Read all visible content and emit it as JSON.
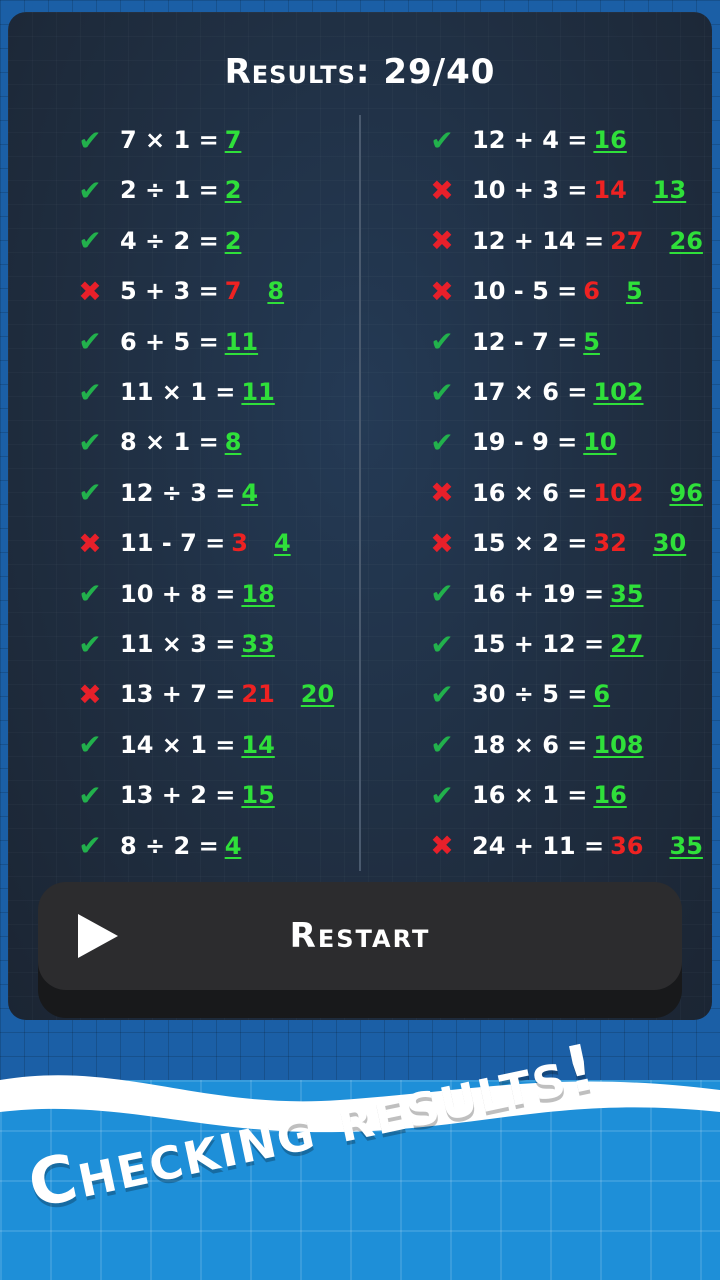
{
  "title": "Results: 29/40",
  "colors": {
    "correct": "#22b14c",
    "wrong": "#e8202a",
    "answer_green": "#2fe03a",
    "panel": "#1f2d3f",
    "button": "#2c2c2e",
    "banner_blue": "#1e8fd8"
  },
  "left": [
    {
      "status": "check-icon",
      "expr": "7 × 1 =",
      "answer": "7"
    },
    {
      "status": "check-icon",
      "expr": "2 ÷ 1 =",
      "answer": "2"
    },
    {
      "status": "check-icon",
      "expr": "4 ÷ 2 =",
      "answer": "2"
    },
    {
      "status": "cross-icon",
      "expr": "5 + 3 =",
      "answer": "7",
      "correct": "8"
    },
    {
      "status": "check-icon",
      "expr": "6 + 5 =",
      "answer": "11"
    },
    {
      "status": "check-icon",
      "expr": "11 × 1 =",
      "answer": "11"
    },
    {
      "status": "check-icon",
      "expr": "8 × 1 =",
      "answer": "8"
    },
    {
      "status": "check-icon",
      "expr": "12 ÷ 3 =",
      "answer": "4"
    },
    {
      "status": "cross-icon",
      "expr": "11 - 7 =",
      "answer": "3",
      "correct": "4"
    },
    {
      "status": "check-icon",
      "expr": "10 + 8 =",
      "answer": "18"
    },
    {
      "status": "check-icon",
      "expr": "11 × 3 =",
      "answer": "33"
    },
    {
      "status": "cross-icon",
      "expr": "13 + 7 =",
      "answer": "21",
      "correct": "20"
    },
    {
      "status": "check-icon",
      "expr": "14 × 1 =",
      "answer": "14"
    },
    {
      "status": "check-icon",
      "expr": "13 + 2 =",
      "answer": "15"
    },
    {
      "status": "check-icon",
      "expr": "8 ÷ 2 =",
      "answer": "4"
    }
  ],
  "right": [
    {
      "status": "check-icon",
      "expr": "12 + 4 =",
      "answer": "16"
    },
    {
      "status": "cross-icon",
      "expr": "10 + 3 =",
      "answer": "14",
      "correct": "13"
    },
    {
      "status": "cross-icon",
      "expr": "12 + 14 =",
      "answer": "27",
      "correct": "26"
    },
    {
      "status": "cross-icon",
      "expr": "10 - 5 =",
      "answer": "6",
      "correct": "5"
    },
    {
      "status": "check-icon",
      "expr": "12 - 7 =",
      "answer": "5"
    },
    {
      "status": "check-icon",
      "expr": "17 × 6 =",
      "answer": "102"
    },
    {
      "status": "check-icon",
      "expr": "19 - 9 =",
      "answer": "10"
    },
    {
      "status": "cross-icon",
      "expr": "16 × 6 =",
      "answer": "102",
      "correct": "96"
    },
    {
      "status": "cross-icon",
      "expr": "15 × 2 =",
      "answer": "32",
      "correct": "30"
    },
    {
      "status": "check-icon",
      "expr": "16 + 19 =",
      "answer": "35"
    },
    {
      "status": "check-icon",
      "expr": "15 + 12 =",
      "answer": "27"
    },
    {
      "status": "check-icon",
      "expr": "30 ÷ 5 =",
      "answer": "6"
    },
    {
      "status": "check-icon",
      "expr": "18 × 6 =",
      "answer": "108"
    },
    {
      "status": "check-icon",
      "expr": "16 × 1 =",
      "answer": "16"
    },
    {
      "status": "cross-icon",
      "expr": "24 + 11 =",
      "answer": "36",
      "correct": "35"
    }
  ],
  "restart_label": "Restart",
  "banner": "Checking results!"
}
